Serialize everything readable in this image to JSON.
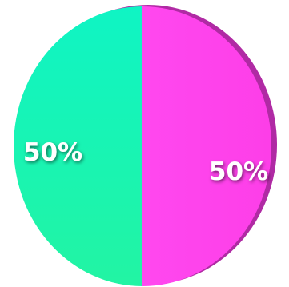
{
  "chart_data": {
    "type": "pie",
    "slices": [
      {
        "label": "50%",
        "value": 50,
        "color": "#ff44ee"
      },
      {
        "label": "50%",
        "value": 50,
        "color": "#1af5b4"
      }
    ]
  }
}
